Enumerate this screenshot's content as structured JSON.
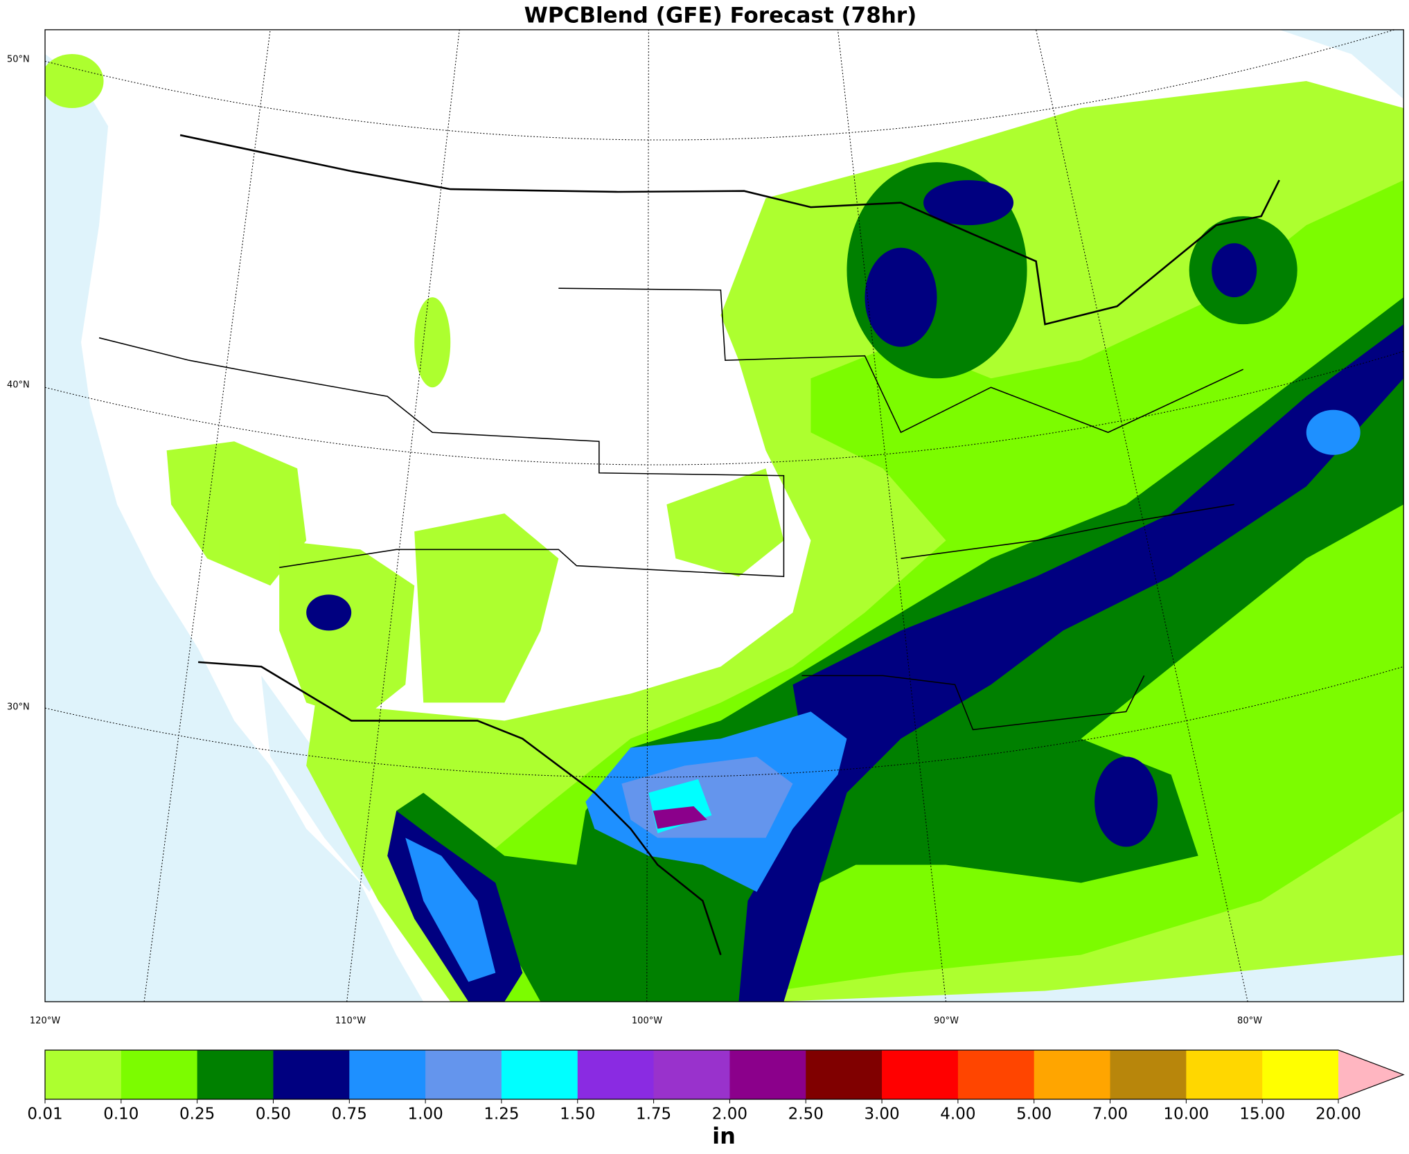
{
  "title": "WPCBlend (GFE) Forecast (78hr)",
  "map": {
    "lat_labels": [
      "50°N",
      "40°N",
      "30°N"
    ],
    "lon_labels": [
      "120°W",
      "110°W",
      "100°W",
      "90°W",
      "80°W"
    ]
  },
  "colorbar": {
    "ticks": [
      "0.01",
      "0.10",
      "0.25",
      "0.50",
      "0.75",
      "1.00",
      "1.25",
      "1.50",
      "1.75",
      "2.00",
      "2.50",
      "3.00",
      "4.00",
      "5.00",
      "7.00",
      "10.00",
      "15.00",
      "20.00"
    ],
    "colors": [
      "#adff2f",
      "#7cfc00",
      "#008000",
      "#000080",
      "#1e90ff",
      "#6495ed",
      "#00ffff",
      "#8a2be2",
      "#9932cc",
      "#8b008b",
      "#800000",
      "#ff0000",
      "#ff4500",
      "#ffa500",
      "#b8860b",
      "#ffd700",
      "#ffff00"
    ],
    "extend_color": "#ffb6c1",
    "unit": "in"
  }
}
